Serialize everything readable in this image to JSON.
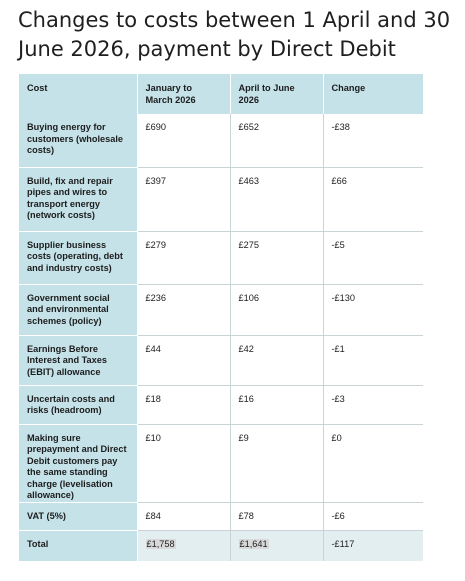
{
  "title": "Changes to costs between 1 April and 30 June 2026, payment by Direct Debit",
  "table": {
    "headers": [
      "Cost",
      "January to March 2026",
      "April to June 2026",
      "Change"
    ],
    "rows": [
      [
        "Buying energy for customers (wholesale costs)",
        "£690",
        "£652",
        "-£38"
      ],
      [
        "Build, fix and repair pipes and wires to transport energy (network costs)",
        "£397",
        "£463",
        "£66"
      ],
      [
        "Supplier business costs (operating, debt and industry costs)",
        "£279",
        "£275",
        "-£5"
      ],
      [
        "Government social and environmental schemes (policy)",
        "£236",
        "£106",
        "-£130"
      ],
      [
        "Earnings Before Interest and Taxes (EBIT) allowance",
        "£44",
        "£42",
        "-£1"
      ],
      [
        "Uncertain costs and risks (headroom)",
        "£18",
        "£16",
        "-£3"
      ],
      [
        "Making sure prepayment and Direct Debit customers pay the same standing charge (levelisation allowance)",
        "£10",
        "£9",
        "£0"
      ],
      [
        "VAT (5%)",
        "£84",
        "£78",
        "-£6"
      ],
      [
        "Total",
        "£1,758",
        "£1,641",
        "-£117"
      ]
    ]
  },
  "colors": {
    "header_bg": "#c4e2e8",
    "total_bg": "#e2eef0",
    "border": "#c9d4d7"
  }
}
